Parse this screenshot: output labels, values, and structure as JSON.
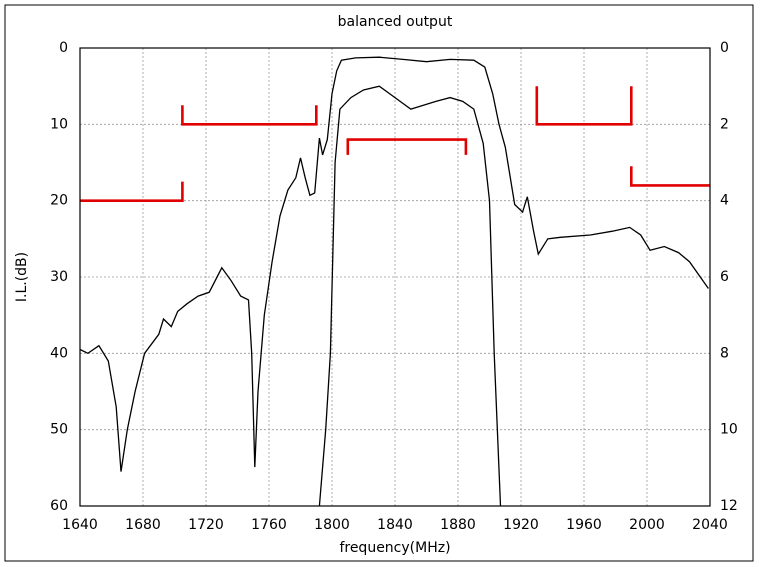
{
  "chart_data": {
    "type": "line",
    "title": "balanced output",
    "xlabel": "frequency(MHz)",
    "ylabel": "I.L.(dB)",
    "xlim": [
      1640,
      2040
    ],
    "xticks": [
      1640,
      1680,
      1720,
      1760,
      1800,
      1840,
      1880,
      1920,
      1960,
      2000,
      2040
    ],
    "ylim": [
      60,
      0
    ],
    "yticks": [
      0,
      10,
      20,
      30,
      40,
      50,
      60
    ],
    "y2lim": [
      12,
      0
    ],
    "y2ticks": [
      0,
      2,
      4,
      6,
      8,
      10,
      12
    ],
    "grid": true,
    "series": [
      {
        "color": "#000000",
        "x": [
          1640,
          1645,
          1652,
          1658,
          1663,
          1666,
          1670,
          1675,
          1681,
          1690,
          1693,
          1698,
          1702,
          1708,
          1715,
          1722,
          1730,
          1736,
          1742,
          1747,
          1749,
          1751,
          1753,
          1757,
          1762,
          1767,
          1772,
          1777,
          1780,
          1783,
          1786,
          1789,
          1792,
          1794,
          1797,
          1800,
          1803,
          1806,
          1815,
          1830,
          1845,
          1860,
          1875,
          1890,
          1897,
          1902,
          1906,
          1910,
          1916,
          1921,
          1924,
          1928,
          1931,
          1937,
          1945,
          1964,
          1978,
          1989,
          1996,
          2002,
          2011,
          2020,
          2027,
          2039
        ],
        "values": [
          39.5,
          40,
          39,
          41,
          47,
          55.5,
          50,
          45,
          40,
          37.5,
          35.5,
          36.5,
          34.5,
          33.5,
          32.5,
          32,
          28.8,
          30.5,
          32.5,
          33,
          40,
          54.9,
          45,
          35,
          28,
          22,
          18.6,
          17,
          14.4,
          17,
          19.3,
          19,
          11.8,
          14,
          12,
          6,
          3,
          1.6,
          1.3,
          1.2,
          1.5,
          1.8,
          1.5,
          1.6,
          2.5,
          6,
          10,
          13,
          20.5,
          21.5,
          19.5,
          24,
          27,
          25,
          24.8,
          24.5,
          24,
          23.5,
          24.5,
          26.5,
          26,
          26.8,
          28,
          31.5
        ]
      },
      {
        "color": "#000000",
        "axis": "y2",
        "x": [
          1792,
          1796,
          1799,
          1802,
          1805,
          1812,
          1820,
          1830,
          1840,
          1850,
          1858,
          1866,
          1875,
          1883,
          1890,
          1896,
          1900,
          1903,
          1907
        ],
        "values": [
          12,
          10,
          8,
          3,
          1.6,
          1.3,
          1.1,
          1.0,
          1.3,
          1.6,
          1.5,
          1.4,
          1.3,
          1.4,
          1.6,
          2.5,
          4,
          8,
          12
        ]
      },
      {
        "color": "#e00000",
        "x": [
          1640,
          1705,
          1705
        ],
        "values": [
          20,
          20,
          17.5
        ]
      },
      {
        "color": "#e00000",
        "x": [
          1705,
          1705,
          1790,
          1790
        ],
        "values": [
          7.5,
          10,
          10,
          7.5
        ]
      },
      {
        "color": "#e00000",
        "x": [
          1810,
          1810,
          1885,
          1885
        ],
        "values": [
          14,
          12,
          12,
          14
        ]
      },
      {
        "color": "#e00000",
        "x": [
          1930,
          1930,
          1990,
          1990
        ],
        "values": [
          5,
          10,
          10,
          5
        ]
      },
      {
        "color": "#e00000",
        "x": [
          1990,
          1990,
          2040
        ],
        "values": [
          15.5,
          18,
          18
        ]
      }
    ]
  }
}
